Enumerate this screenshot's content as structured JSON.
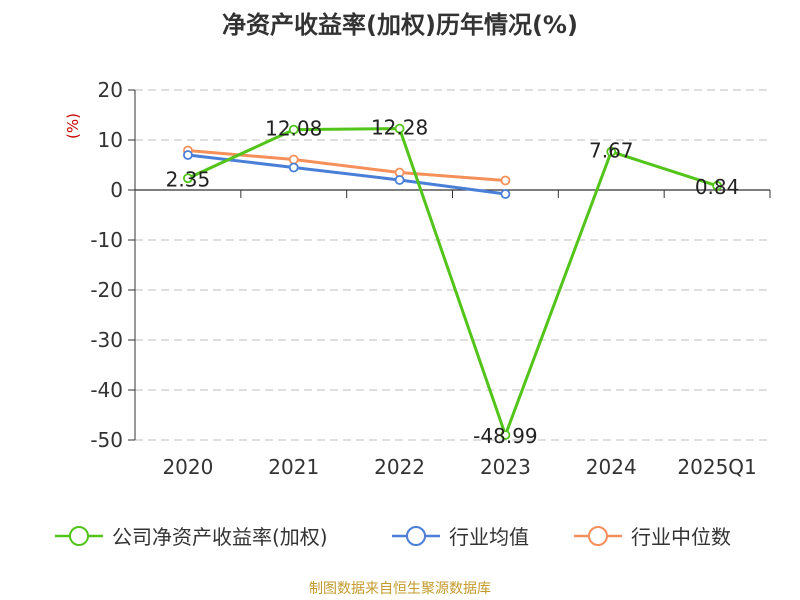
{
  "chart_data": {
    "type": "line",
    "title": "净资产收益率(加权)历年情况(%)",
    "unit": "(%)",
    "categories": [
      "2020",
      "2021",
      "2022",
      "2023",
      "2024",
      "2025Q1"
    ],
    "y_ticks": [
      "20",
      "10",
      "0",
      "-10",
      "-20",
      "-30",
      "-40",
      "-50"
    ],
    "ylim": [
      -50,
      20
    ],
    "grid": true,
    "legend_position": "bottom",
    "series": [
      {
        "name": "公司净资产收益率(加权)",
        "color": "#52c41a",
        "values": [
          2.35,
          12.08,
          12.28,
          -48.99,
          7.67,
          0.84
        ],
        "labels": [
          "2.35",
          "12.08",
          "12.28",
          "-48.99",
          "7.67",
          "0.84"
        ]
      },
      {
        "name": "行业均值",
        "color": "#4a7fd8",
        "values": [
          7.0,
          4.5,
          2.0,
          -0.8,
          null,
          null
        ]
      },
      {
        "name": "行业中位数",
        "color": "#f5905a",
        "values": [
          7.9,
          6.1,
          3.5,
          1.9,
          null,
          null
        ]
      }
    ]
  },
  "colors": {
    "unit": "#cc0000",
    "source": "#c49a2c",
    "grid": "#cccccc",
    "axis": "#333333"
  },
  "source": "制图数据来自恒生聚源数据库"
}
